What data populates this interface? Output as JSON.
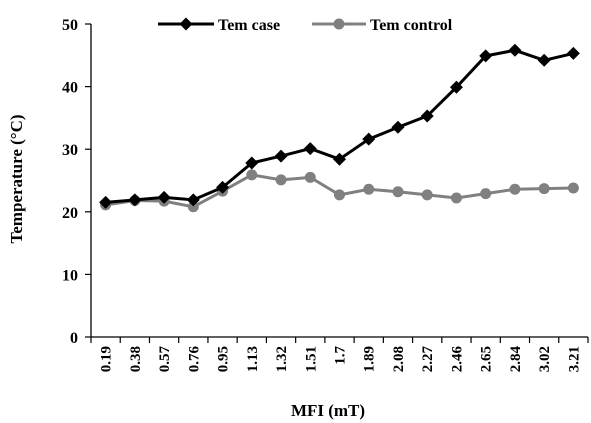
{
  "chart_data": {
    "type": "line",
    "title": "",
    "xlabel": "MFI (mT)",
    "ylabel": "Temperature (°C)",
    "x": [
      "0.19",
      "0.38",
      "0.57",
      "0.76",
      "0.95",
      "1.13",
      "1.32",
      "1.51",
      "1.7",
      "1.89",
      "2.08",
      "2.27",
      "2.46",
      "2.65",
      "2.84",
      "3.02",
      "3.21"
    ],
    "ylim": [
      0,
      50
    ],
    "yticks": [
      "0",
      "10",
      "20",
      "30",
      "40",
      "50"
    ],
    "grid": false,
    "legend_position": "top",
    "series": [
      {
        "name": "Tem case",
        "color": "#000000",
        "marker": "diamond",
        "values": [
          21.5,
          21.9,
          22.3,
          21.9,
          23.9,
          27.8,
          28.9,
          30.1,
          28.4,
          31.6,
          33.5,
          35.3,
          39.9,
          44.9,
          45.8,
          44.2,
          45.3
        ]
      },
      {
        "name": "Tem control",
        "color": "#808080",
        "marker": "circle",
        "values": [
          21.1,
          21.8,
          21.7,
          20.8,
          23.3,
          25.9,
          25.1,
          25.5,
          22.7,
          23.6,
          23.2,
          22.7,
          22.2,
          22.9,
          23.6,
          23.7,
          23.8
        ]
      }
    ]
  }
}
